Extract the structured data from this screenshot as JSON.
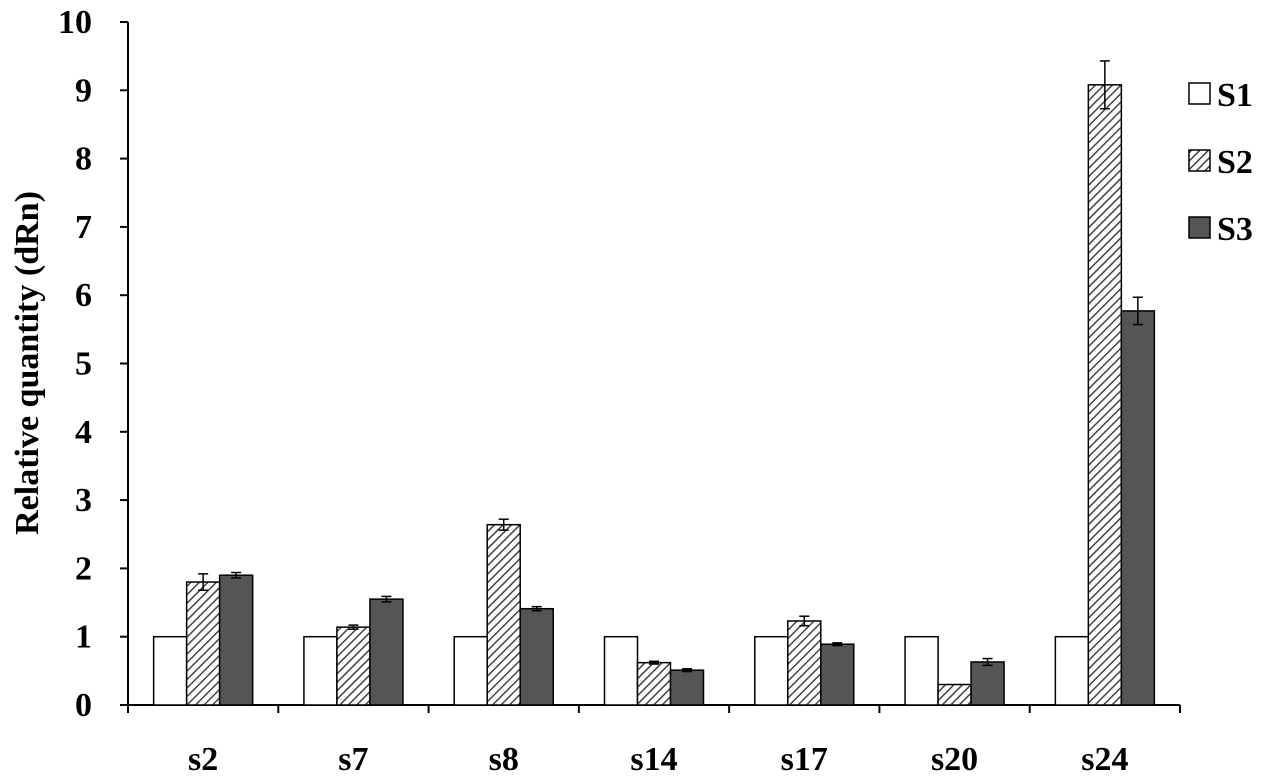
{
  "chart_data": {
    "type": "bar",
    "title": "",
    "xlabel": "",
    "ylabel": "Relative quantity (dRn)",
    "ylim": [
      0,
      10
    ],
    "yticks": [
      0,
      1,
      2,
      3,
      4,
      5,
      6,
      7,
      8,
      9,
      10
    ],
    "categories": [
      "s2",
      "s7",
      "s8",
      "s14",
      "s17",
      "s20",
      "s24"
    ],
    "series": [
      {
        "name": "S1",
        "fill": "#ffffff",
        "pattern": "none",
        "values": [
          1,
          1,
          1,
          1,
          1,
          1,
          1
        ],
        "errors": [
          0,
          0,
          0,
          0,
          0,
          0,
          0
        ]
      },
      {
        "name": "S2",
        "fill": "#ffffff",
        "pattern": "diagonal-hatch",
        "values": [
          1.8,
          1.14,
          2.64,
          0.62,
          1.23,
          0.3,
          9.08
        ],
        "errors": [
          0.12,
          0.03,
          0.08,
          0.02,
          0.07,
          0.0,
          0.35
        ]
      },
      {
        "name": "S3",
        "fill": "#555555",
        "pattern": "none",
        "values": [
          1.9,
          1.55,
          1.41,
          0.51,
          0.89,
          0.63,
          5.77
        ],
        "errors": [
          0.04,
          0.04,
          0.03,
          0.02,
          0.02,
          0.05,
          0.2
        ]
      }
    ],
    "grid": false,
    "legend_position": "right"
  }
}
